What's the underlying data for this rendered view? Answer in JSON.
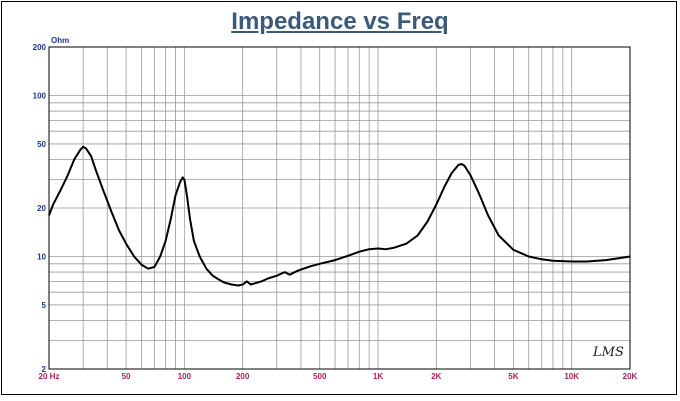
{
  "chart_data": {
    "type": "line",
    "title": "Impedance vs Freq",
    "ylabel": "Ohm",
    "xlabel": "",
    "x_scale": "log",
    "y_scale": "log",
    "xlim": [
      20,
      20000
    ],
    "ylim": [
      2,
      200
    ],
    "grid": true,
    "x_ticks": [
      {
        "value": 20,
        "label": "20 Hz"
      },
      {
        "value": 50,
        "label": "50"
      },
      {
        "value": 100,
        "label": "100"
      },
      {
        "value": 200,
        "label": "200"
      },
      {
        "value": 500,
        "label": "500"
      },
      {
        "value": 1000,
        "label": "1K"
      },
      {
        "value": 2000,
        "label": "2K"
      },
      {
        "value": 5000,
        "label": "5K"
      },
      {
        "value": 10000,
        "label": "10K"
      },
      {
        "value": 20000,
        "label": "20K"
      }
    ],
    "y_ticks": [
      {
        "value": 2,
        "label": "2"
      },
      {
        "value": 5,
        "label": "5"
      },
      {
        "value": 10,
        "label": "10"
      },
      {
        "value": 20,
        "label": "20"
      },
      {
        "value": 50,
        "label": "50"
      },
      {
        "value": 100,
        "label": "100"
      },
      {
        "value": 200,
        "label": "200"
      }
    ],
    "series": [
      {
        "x": [
          20,
          21,
          23,
          25,
          27,
          29,
          30,
          31,
          33,
          35,
          38,
          42,
          46,
          50,
          55,
          60,
          65,
          70,
          75,
          80,
          85,
          90,
          95,
          98,
          100,
          103,
          107,
          112,
          120,
          130,
          140,
          150,
          160,
          175,
          190,
          200,
          210,
          220,
          230,
          250,
          270,
          300,
          330,
          350,
          380,
          400,
          450,
          500,
          600,
          700,
          800,
          900,
          1000,
          1100,
          1200,
          1400,
          1600,
          1800,
          2000,
          2200,
          2400,
          2600,
          2700,
          2800,
          3000,
          3300,
          3700,
          4200,
          5000,
          6000,
          7000,
          8000,
          10000,
          12000,
          15000,
          18000,
          20000
        ],
        "y": [
          18,
          21,
          26,
          32,
          40,
          46,
          48,
          47,
          42,
          34,
          26,
          19,
          14.5,
          12,
          10,
          8.9,
          8.4,
          8.6,
          10,
          12.5,
          17,
          24,
          29,
          31,
          30,
          24,
          17,
          12.5,
          10,
          8.4,
          7.6,
          7.2,
          6.9,
          6.7,
          6.6,
          6.7,
          7,
          6.7,
          6.8,
          7,
          7.3,
          7.6,
          8,
          7.7,
          8.1,
          8.3,
          8.7,
          9,
          9.5,
          10.1,
          10.7,
          11.1,
          11.2,
          11.1,
          11.3,
          12,
          13.5,
          16.5,
          21,
          27,
          33,
          37,
          37.5,
          36.5,
          32,
          25,
          18,
          13.5,
          11,
          10,
          9.6,
          9.4,
          9.3,
          9.3,
          9.5,
          9.8,
          10
        ]
      }
    ]
  }
}
